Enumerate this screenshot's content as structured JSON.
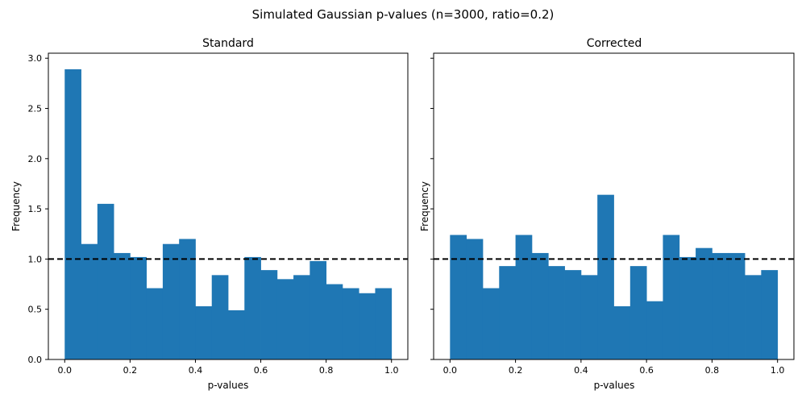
{
  "figure": {
    "suptitle": "Simulated Gaussian p-values (n=3000, ratio=0.2)",
    "bar_color": "#1f77b4",
    "reference_line_color": "#000000"
  },
  "chart_data": [
    {
      "type": "bar",
      "title": "Standard",
      "xlabel": "p-values",
      "ylabel": "Frequency",
      "xlim": [
        -0.05,
        1.05
      ],
      "ylim": [
        0,
        3.05
      ],
      "xticks": [
        0.0,
        0.2,
        0.4,
        0.6,
        0.8,
        1.0
      ],
      "xtick_labels": [
        "0.0",
        "0.2",
        "0.4",
        "0.6",
        "0.8",
        "1.0"
      ],
      "yticks": [
        0.0,
        0.5,
        1.0,
        1.5,
        2.0,
        2.5,
        3.0
      ],
      "ytick_labels": [
        "0.0",
        "0.5",
        "1.0",
        "1.5",
        "2.0",
        "2.5",
        "3.0"
      ],
      "show_ytick_labels": true,
      "bin_edges": [
        0.0,
        0.05,
        0.1,
        0.15,
        0.2,
        0.25,
        0.3,
        0.35,
        0.4,
        0.45,
        0.5,
        0.55,
        0.6,
        0.65,
        0.7,
        0.75,
        0.8,
        0.85,
        0.9,
        0.95,
        1.0
      ],
      "values": [
        2.89,
        1.15,
        1.55,
        1.06,
        1.02,
        0.71,
        1.15,
        1.2,
        0.53,
        0.84,
        0.49,
        1.02,
        0.89,
        0.8,
        0.84,
        0.98,
        0.75,
        0.71,
        0.66,
        0.71
      ],
      "reference_line_y": 1.0,
      "grid": false
    },
    {
      "type": "bar",
      "title": "Corrected",
      "xlabel": "p-values",
      "ylabel": "Frequency",
      "xlim": [
        -0.05,
        1.05
      ],
      "ylim": [
        0,
        3.05
      ],
      "xticks": [
        0.0,
        0.2,
        0.4,
        0.6,
        0.8,
        1.0
      ],
      "xtick_labels": [
        "0.0",
        "0.2",
        "0.4",
        "0.6",
        "0.8",
        "1.0"
      ],
      "yticks": [
        0.0,
        0.5,
        1.0,
        1.5,
        2.0,
        2.5,
        3.0
      ],
      "ytick_labels": [],
      "show_ytick_labels": false,
      "bin_edges": [
        0.0,
        0.05,
        0.1,
        0.15,
        0.2,
        0.25,
        0.3,
        0.35,
        0.4,
        0.45,
        0.5,
        0.55,
        0.6,
        0.65,
        0.7,
        0.75,
        0.8,
        0.85,
        0.9,
        0.95,
        1.0
      ],
      "values": [
        1.24,
        1.2,
        0.71,
        0.93,
        1.24,
        1.06,
        0.93,
        0.89,
        0.84,
        1.64,
        0.53,
        0.93,
        0.58,
        1.24,
        1.02,
        1.11,
        1.06,
        1.06,
        0.84,
        0.89
      ],
      "reference_line_y": 1.0,
      "grid": false
    }
  ]
}
